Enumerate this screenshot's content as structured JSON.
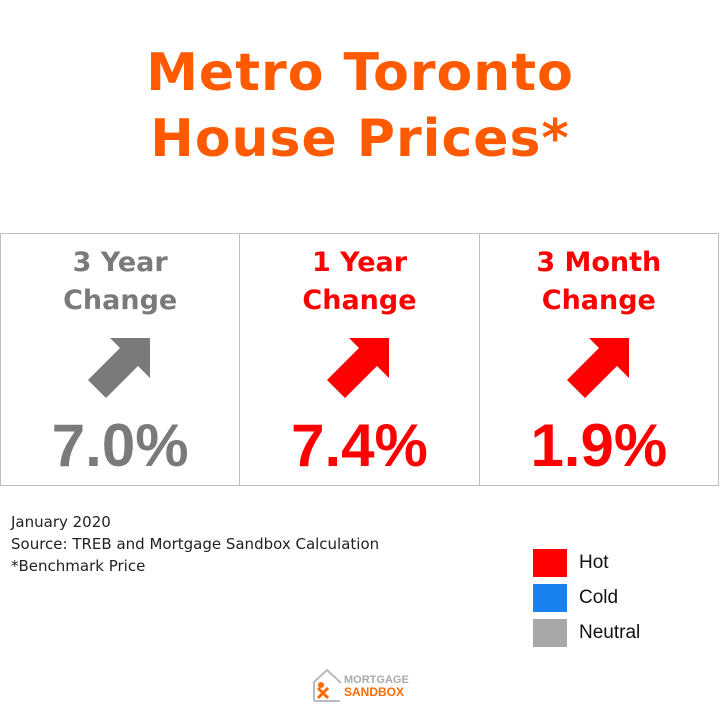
{
  "title": {
    "line1": "Metro Toronto",
    "line2": "House Prices*"
  },
  "cards": [
    {
      "label_line1": "3 Year",
      "label_line2": "Change",
      "value": "7.0%",
      "status": "neutral",
      "color": "#7a7a7a",
      "arrow": "arrow-up-right-icon"
    },
    {
      "label_line1": "1 Year",
      "label_line2": "Change",
      "value": "7.4%",
      "status": "hot",
      "color": "#ff0000",
      "arrow": "arrow-up-right-icon"
    },
    {
      "label_line1": "3 Month",
      "label_line2": "Change",
      "value": "1.9%",
      "status": "hot",
      "color": "#ff0000",
      "arrow": "arrow-up-right-icon"
    }
  ],
  "footnotes": {
    "date": "January 2020",
    "source": "Source: TREB and Mortgage Sandbox Calculation",
    "note": "*Benchmark Price"
  },
  "legend": [
    {
      "label": "Hot",
      "color": "#ff0000"
    },
    {
      "label": "Cold",
      "color": "#1a82f0"
    },
    {
      "label": "Neutral",
      "color": "#a8a8a8"
    }
  ],
  "logo": {
    "line1": "MORTGAGE",
    "line2": "SANDBOX"
  },
  "colors": {
    "title": "#ff5a00",
    "border": "#bdbdbd"
  }
}
